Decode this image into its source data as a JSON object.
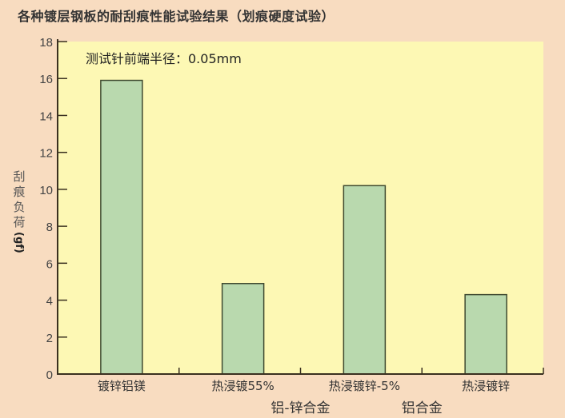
{
  "chart_data": {
    "type": "bar",
    "title": "各种镀层钢板的耐刮痕性能试验结果（划痕硬度试验）",
    "annotation": "测试针前端半径：0.05mm",
    "ylabel": "刮痕负荷",
    "yunit": "(gf)",
    "xlabel": "",
    "ylim": [
      0,
      18
    ],
    "yticks": [
      0,
      2,
      4,
      6,
      8,
      10,
      12,
      14,
      16,
      18
    ],
    "categories": [
      {
        "line1": "镀锌铝镁",
        "line2": ""
      },
      {
        "line1": "热浸镀55%",
        "line2": "铝-锌合金"
      },
      {
        "line1": "热浸镀锌-5%",
        "line2": "铝合金"
      },
      {
        "line1": "热浸镀锌",
        "line2": ""
      }
    ],
    "values": [
      15.9,
      4.9,
      10.2,
      4.3
    ],
    "grid": false,
    "colors": {
      "background": "#f8dcc0",
      "plot": "#fdf8b4",
      "bar": "#b9d9ae",
      "bar_border": "#3f4a30",
      "axis": "#3a3020"
    }
  }
}
